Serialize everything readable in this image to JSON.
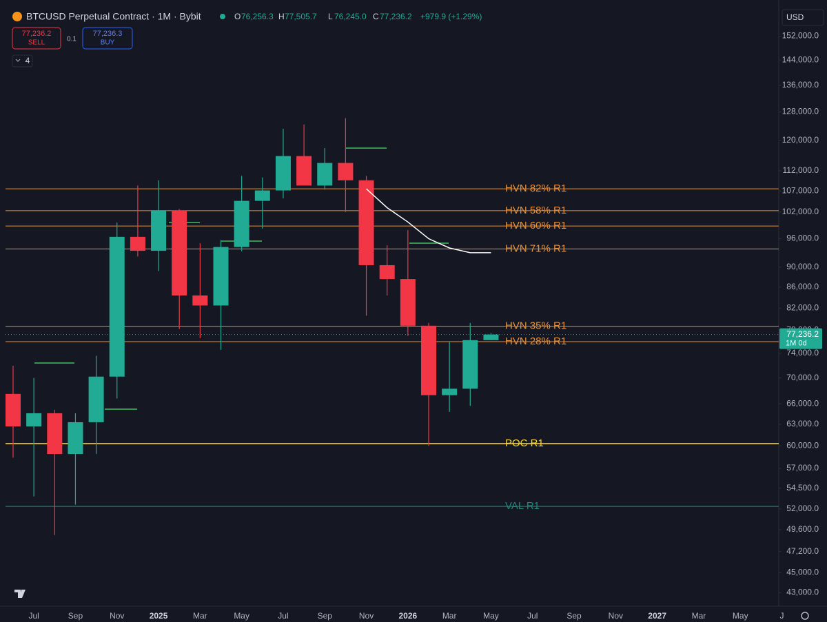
{
  "chart_data": {
    "type": "candlestick",
    "title": "BTCUSD Perpetual Contract · 1M · Bybit",
    "legend_values": [
      {
        "label": "O",
        "value": "76,256.3"
      },
      {
        "label": "H",
        "value": "77,505.7"
      },
      {
        "label": "L",
        "value": "76,245.0"
      },
      {
        "label": "C",
        "value": "77,236.2"
      }
    ],
    "change": "+979.9 (+1.29%)",
    "sell": {
      "price": "77,236.2",
      "label": "SELL"
    },
    "spread": "0.1",
    "buy": {
      "price": "77,236.3",
      "label": "BUY"
    },
    "indicator_count": "4",
    "currency": "USD",
    "last_price": 77236.2,
    "last_price_label": "77,236.2",
    "countdown": "1M 0d",
    "log_scale": true,
    "up_color": "#22ab94",
    "down_color": "#f23645",
    "categories": [
      null,
      "Jul",
      null,
      "Sep",
      null,
      "Nov",
      null,
      "2025",
      null,
      "Mar",
      null,
      "May",
      null,
      "Jul",
      null,
      "Sep",
      null,
      "Nov",
      null,
      "2026",
      null,
      "Mar",
      null,
      "May",
      null,
      "Jul",
      null,
      "Sep",
      null,
      "Nov",
      null,
      "2027",
      null,
      "Mar",
      null,
      "May",
      null,
      "J"
    ],
    "open": [
      67500,
      62700,
      64600,
      58900,
      63300,
      70200,
      96400,
      93400,
      102400,
      84400,
      82500,
      94200,
      104600,
      107100,
      115800,
      108300,
      114000,
      109600,
      90400,
      87600,
      78800,
      67300,
      68300,
      76256.3,
      null,
      null,
      null,
      null,
      null,
      null,
      null,
      null,
      null,
      null,
      null,
      null,
      null,
      null
    ],
    "high": [
      71950,
      70000,
      65100,
      64600,
      73600,
      99600,
      108300,
      109600,
      102700,
      95000,
      95700,
      110700,
      110300,
      123200,
      124400,
      117900,
      126200,
      110700,
      94600,
      97900,
      79300,
      76000,
      79300,
      77505.7,
      null,
      null,
      null,
      null,
      null,
      null,
      null,
      null,
      null,
      null,
      null,
      null,
      null,
      null
    ],
    "low": [
      58400,
      53500,
      49000,
      52500,
      58900,
      66800,
      92200,
      89200,
      78200,
      76600,
      74600,
      93300,
      98200,
      105200,
      108700,
      107300,
      102000,
      80600,
      84400,
      77000,
      60000,
      64800,
      65700,
      76245.0,
      null,
      null,
      null,
      null,
      null,
      null,
      null,
      null,
      null,
      null,
      null,
      null,
      null,
      null
    ],
    "close": [
      62700,
      64600,
      58900,
      63300,
      70200,
      96400,
      93400,
      102400,
      84400,
      82500,
      94200,
      104600,
      107100,
      115800,
      108300,
      114000,
      109600,
      90400,
      87600,
      78800,
      67300,
      68300,
      76256.3,
      77236.2,
      null,
      null,
      null,
      null,
      null,
      null,
      null,
      null,
      null,
      null,
      null,
      null,
      null,
      null
    ],
    "overlay": {
      "color": "#ffffff",
      "values": [
        null,
        null,
        null,
        null,
        null,
        null,
        null,
        null,
        null,
        null,
        null,
        null,
        null,
        null,
        null,
        null,
        null,
        107500,
        103000,
        99700,
        96000,
        94000,
        93000,
        93000,
        null,
        null,
        null,
        null,
        null,
        null,
        null,
        null,
        null,
        null,
        null,
        null,
        null,
        null
      ]
    },
    "levels": [
      {
        "label": "HVN 82% R1",
        "value": 107500,
        "color": "#e8913a"
      },
      {
        "label": "HVN 58% R1",
        "value": 102300,
        "color": "#e8913a"
      },
      {
        "label": "HVN 60% R1",
        "value": 98800,
        "color": "#e8913a"
      },
      {
        "label": "HVN 71% R1",
        "value": 93800,
        "color": "#e8913a"
      },
      {
        "label": "HVN 35% R1",
        "value": 78700,
        "color": "#e8913a"
      },
      {
        "label": "HVN 28% R1",
        "value": 76000,
        "color": "#e8913a"
      },
      {
        "label": "POC R1",
        "value": 60300,
        "color": "#f5d33b"
      },
      {
        "label": "VAL R1",
        "value": 52300,
        "color": "#1f8a7a"
      }
    ],
    "ylim": [
      41700,
      165000
    ],
    "yticks": [
      {
        "value": 152000,
        "label": "152,000.0"
      },
      {
        "value": 144000,
        "label": "144,000.0"
      },
      {
        "value": 136000,
        "label": "136,000.0"
      },
      {
        "value": 128000,
        "label": "128,000.0"
      },
      {
        "value": 120000,
        "label": "120,000.0"
      },
      {
        "value": 112000,
        "label": "112,000.0"
      },
      {
        "value": 107000,
        "label": "107,000.0"
      },
      {
        "value": 102000,
        "label": "102,000.0"
      },
      {
        "value": 96000,
        "label": "96,000.0"
      },
      {
        "value": 90000,
        "label": "90,000.0"
      },
      {
        "value": 86000,
        "label": "86,000.0"
      },
      {
        "value": 82000,
        "label": "82,000.0"
      },
      {
        "value": 78000,
        "label": "78,000.0"
      },
      {
        "value": 74000,
        "label": "74,000.0"
      },
      {
        "value": 70000,
        "label": "70,000.0"
      },
      {
        "value": 66000,
        "label": "66,000.0"
      },
      {
        "value": 63000,
        "label": "63,000.0"
      },
      {
        "value": 60000,
        "label": "60,000.0"
      },
      {
        "value": 57000,
        "label": "57,000.0"
      },
      {
        "value": 54500,
        "label": "54,500.0"
      },
      {
        "value": 52000,
        "label": "52,000.0"
      },
      {
        "value": 49600,
        "label": "49,600.0"
      },
      {
        "value": 47200,
        "label": "47,200.0"
      },
      {
        "value": 45000,
        "label": "45,000.0"
      },
      {
        "value": 43000,
        "label": "43,000.0"
      }
    ],
    "grid": false
  }
}
